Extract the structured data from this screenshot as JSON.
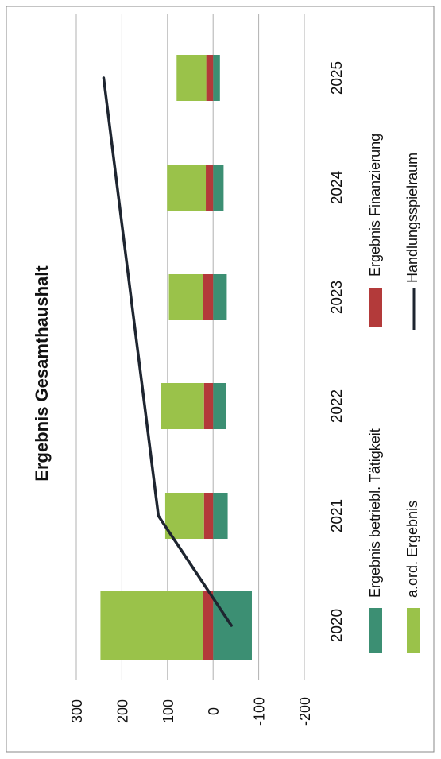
{
  "chart_data": {
    "type": "bar",
    "stacked": true,
    "title": "Ergebnis Gesamthaushalt",
    "categories": [
      "2020",
      "2021",
      "2022",
      "2023",
      "2024",
      "2025"
    ],
    "series": [
      {
        "name": "Ergebnis betriebl. Tätigkeit",
        "kind": "bar",
        "color": "#3c8f73",
        "values": [
          -85,
          -32,
          -28,
          -30,
          -23,
          -15
        ]
      },
      {
        "name": "Ergebnis Finanzierung",
        "kind": "bar",
        "color": "#b33a3a",
        "values": [
          22,
          20,
          20,
          22,
          16,
          15
        ]
      },
      {
        "name": "a.ord. Ergebnis",
        "kind": "bar",
        "color": "#9ac24a",
        "values": [
          225,
          85,
          95,
          75,
          85,
          65
        ]
      },
      {
        "name": "Handlungsspielraum",
        "kind": "line",
        "color": "#1e2530",
        "values": [
          -40,
          120,
          150,
          180,
          210,
          240
        ]
      }
    ],
    "axis": {
      "ticks": [
        "300",
        "200",
        "100",
        "0",
        "-100",
        "-200"
      ],
      "range": [
        -200,
        300
      ]
    },
    "grid": true,
    "legend_position": "bottom"
  }
}
